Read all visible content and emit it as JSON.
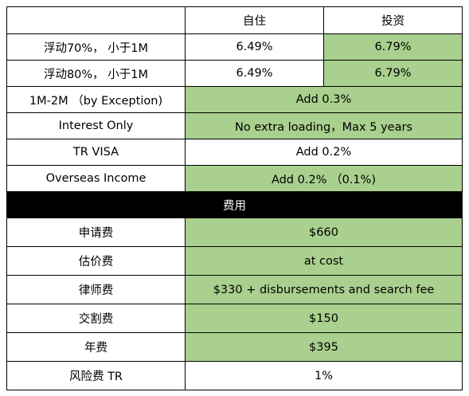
{
  "colors": {
    "highlight": "#a9d08e",
    "section_bg": "#000000",
    "border": "#000000"
  },
  "header": {
    "corner": "",
    "col_owner": "自住",
    "col_invest": "投资"
  },
  "rates": [
    {
      "label": "浮动70%， 小于1M",
      "owner": "6.49%",
      "invest": "6.79%"
    },
    {
      "label": "浮动80%， 小于1M",
      "owner": "6.49%",
      "invest": "6.79%"
    }
  ],
  "loadings": [
    {
      "label": "1M-2M （by Exception)",
      "value": "Add 0.3%",
      "highlighted": true
    },
    {
      "label": "Interest Only",
      "value": "No extra loading，Max 5 years",
      "highlighted": true
    },
    {
      "label": "TR VISA",
      "value": "Add 0.2%",
      "highlighted": false
    },
    {
      "label": "Overseas Income",
      "value": "Add 0.2% （0.1%)",
      "highlighted": true
    }
  ],
  "fees_section": {
    "title": "费用"
  },
  "fees": [
    {
      "label": "申请费",
      "value": "$660",
      "highlighted": true
    },
    {
      "label": "估价费",
      "value": "at cost",
      "highlighted": true
    },
    {
      "label": "律师费",
      "value": "$330 + disbursements and search fee",
      "highlighted": true
    },
    {
      "label": "交割费",
      "value": "$150",
      "highlighted": true
    },
    {
      "label": "年费",
      "value": "$395",
      "highlighted": true
    },
    {
      "label": "风险费 TR",
      "value": "1%",
      "highlighted": false
    }
  ]
}
